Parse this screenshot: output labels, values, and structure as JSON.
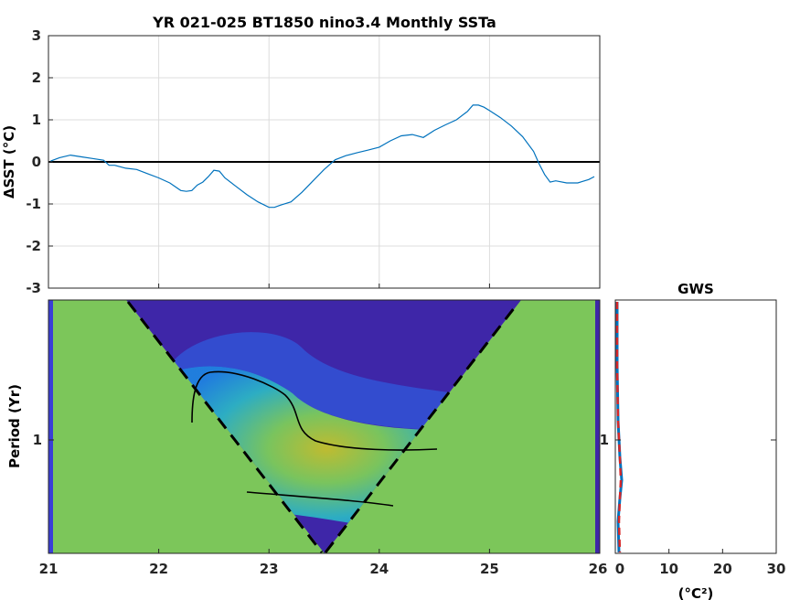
{
  "chart_data": [
    {
      "type": "line",
      "title": "YR 021-025 BT1850 nino3.4 Monthly SSTa",
      "ylabel": "ΔSST (°C)",
      "xlim": [
        21,
        26
      ],
      "ylim": [
        -3,
        3
      ],
      "yticks": [
        "-3",
        "-2",
        "-1",
        "0",
        "1",
        "2",
        "3"
      ],
      "grid": true,
      "zero_line": true,
      "line_color": "#0072bd",
      "series": [
        {
          "x": [
            21.02,
            21.1,
            21.2,
            21.3,
            21.4,
            21.5,
            21.55,
            21.6,
            21.7,
            21.8,
            21.9,
            22.0,
            22.1,
            22.2,
            22.25,
            22.3,
            22.35,
            22.4,
            22.45,
            22.5,
            22.55,
            22.6,
            22.7,
            22.8,
            22.9,
            23.0,
            23.05,
            23.1,
            23.2,
            23.3,
            23.4,
            23.5,
            23.6,
            23.7,
            23.8,
            23.9,
            24.0,
            24.1,
            24.2,
            24.3,
            24.4,
            24.5,
            24.6,
            24.7,
            24.8,
            24.85,
            24.9,
            24.95,
            25.0,
            25.1,
            25.2,
            25.3,
            25.4,
            25.45,
            25.5,
            25.55,
            25.6,
            25.7,
            25.8,
            25.9,
            25.95
          ],
          "y": [
            0.02,
            0.1,
            0.16,
            0.12,
            0.08,
            0.04,
            -0.08,
            -0.08,
            -0.15,
            -0.18,
            -0.28,
            -0.38,
            -0.5,
            -0.68,
            -0.7,
            -0.68,
            -0.55,
            -0.48,
            -0.35,
            -0.2,
            -0.22,
            -0.38,
            -0.58,
            -0.78,
            -0.95,
            -1.08,
            -1.08,
            -1.03,
            -0.95,
            -0.72,
            -0.45,
            -0.18,
            0.05,
            0.15,
            0.22,
            0.28,
            0.35,
            0.5,
            0.62,
            0.65,
            0.58,
            0.75,
            0.88,
            1.0,
            1.2,
            1.35,
            1.35,
            1.3,
            1.22,
            1.05,
            0.85,
            0.6,
            0.25,
            -0.05,
            -0.3,
            -0.48,
            -0.45,
            -0.5,
            -0.5,
            -0.42,
            -0.35
          ]
        }
      ]
    },
    {
      "type": "heatmap",
      "ylabel": "Period (Yr)",
      "xlim": [
        21,
        26
      ],
      "xticks": [
        "21",
        "22",
        "23",
        "24",
        "25",
        "26"
      ],
      "yticks": [
        "1"
      ],
      "colormap": "parula",
      "cone_of_influence": "dashed",
      "significance_contours": 2
    },
    {
      "type": "line",
      "title": "GWS",
      "xlabel": "(°C²)",
      "xlim": [
        0,
        30
      ],
      "xticks": [
        "0",
        "10",
        "20",
        "30"
      ],
      "yticks": [
        "1"
      ],
      "series_colors": [
        "#0072bd",
        "#d62728"
      ]
    }
  ]
}
